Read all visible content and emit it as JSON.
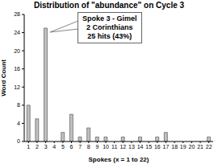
{
  "chart_data": {
    "type": "bar",
    "title": "Distribution of \"abundance\" on Cycle 3",
    "x_label": "Spokes (x = 1 to 22)",
    "y_label": "Word Count",
    "categories": [
      "1",
      "2",
      "3",
      "4",
      "5",
      "6",
      "7",
      "8",
      "9",
      "10",
      "11",
      "12",
      "13",
      "14",
      "15",
      "16",
      "17",
      "18",
      "19",
      "20",
      "21",
      "22"
    ],
    "values": [
      8,
      5,
      25,
      0,
      2,
      6,
      1,
      3,
      1,
      1,
      0,
      1,
      0,
      1,
      0,
      1,
      2,
      0,
      0,
      0,
      0,
      1
    ],
    "color": "#c0c0c0",
    "ylim": [
      0,
      28
    ],
    "yticks": [
      0,
      4,
      8,
      12,
      16,
      20,
      24,
      28
    ],
    "grid": false,
    "annotation": [
      "Spoke 3 - Gimel",
      "2 Corinthians",
      "25 hits (43%)"
    ]
  }
}
